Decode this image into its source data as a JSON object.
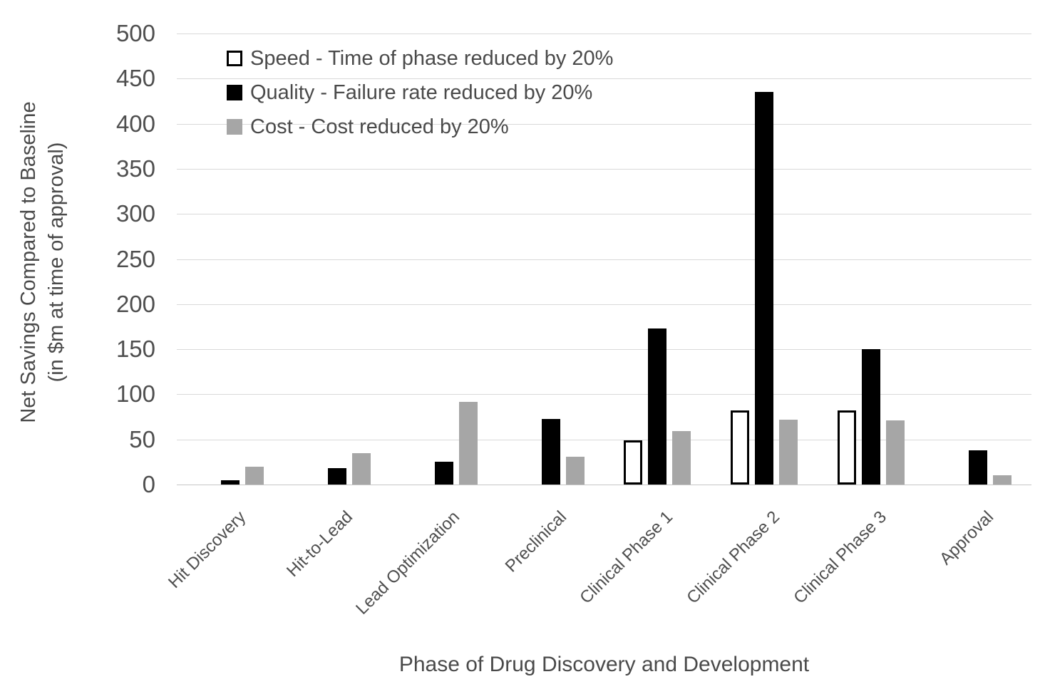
{
  "chart_data": {
    "type": "bar",
    "title": "",
    "xlabel": "Phase of Drug Discovery and Development",
    "ylabel_lines": [
      "Net Savings Compared to Baseline",
      "(in $m at time of approval)"
    ],
    "categories": [
      "Hit Discovery",
      "Hit-to-Lead",
      "Lead Optimization",
      "Preclinical",
      "Clinical Phase 1",
      "Clinical Phase 2",
      "Clinical Phase 3",
      "Approval"
    ],
    "series": [
      {
        "key": "speed",
        "name": "Speed - Time of phase reduced by 20%",
        "fill": "#ffffff",
        "border": "#000000",
        "values": [
          0,
          0,
          0,
          0,
          49,
          82,
          82,
          0
        ]
      },
      {
        "key": "quality",
        "name": "Quality - Failure rate reduced by 20%",
        "fill": "#000000",
        "border": "#000000",
        "values": [
          5,
          18,
          25,
          73,
          173,
          435,
          150,
          38
        ]
      },
      {
        "key": "cost",
        "name": "Cost - Cost reduced by 20%",
        "fill": "#a6a6a6",
        "border": "#a6a6a6",
        "values": [
          20,
          35,
          92,
          31,
          59,
          72,
          71,
          10
        ]
      }
    ],
    "ylim": [
      0,
      500
    ],
    "ytick_step": 50,
    "grid": true,
    "legend_position": "top-left-inside"
  },
  "colors": {
    "gridline": "#d9d9d9",
    "axis_line": "#c6c6c6",
    "text": "#4f4f4f",
    "background": "#ffffff"
  }
}
